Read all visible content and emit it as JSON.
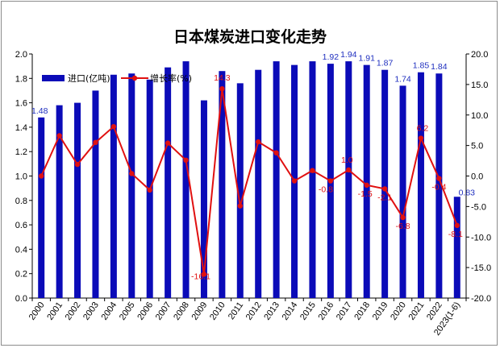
{
  "chart_data": {
    "type": "bar+line",
    "title": "日本煤炭进口变化走势",
    "categories": [
      "2000",
      "2001",
      "2002",
      "2003",
      "2004",
      "2005",
      "2006",
      "2007",
      "2008",
      "2009",
      "2010",
      "2011",
      "2012",
      "2013",
      "2014",
      "2015",
      "2016",
      "2017",
      "2018",
      "2019",
      "2020",
      "2021",
      "2022",
      "2023(1-6)"
    ],
    "series": [
      {
        "name": "进口(亿吨)",
        "type": "bar",
        "axis": "left",
        "color": "#0b0bb8",
        "values": [
          1.48,
          1.58,
          1.6,
          1.7,
          1.83,
          1.84,
          1.79,
          1.89,
          1.94,
          1.62,
          1.86,
          1.76,
          1.87,
          1.94,
          1.91,
          1.94,
          1.92,
          1.94,
          1.91,
          1.87,
          1.74,
          1.85,
          1.84,
          0.83
        ],
        "labels": [
          "1.48",
          "",
          "",
          "",
          "",
          "",
          "",
          "",
          "",
          "",
          "",
          "",
          "",
          "",
          "",
          "",
          "1.92",
          "1.94",
          "1.91",
          "1.87",
          "1.74",
          "1.85",
          "1.84",
          "0.83"
        ]
      },
      {
        "name": "增长率(%)",
        "type": "line",
        "axis": "right",
        "color": "#e01010",
        "values": [
          0.0,
          6.6,
          1.9,
          5.5,
          8.1,
          0.4,
          -2.3,
          5.4,
          2.6,
          -16.1,
          14.3,
          -4.9,
          5.6,
          3.8,
          -0.8,
          0.9,
          -0.8,
          1.0,
          -1.5,
          -2.1,
          -6.8,
          6.2,
          -0.4,
          -8.1
        ],
        "labels": [
          "",
          "",
          "",
          "",
          "",
          "",
          "",
          "",
          "",
          "-16.1",
          "14.3",
          "",
          "",
          "",
          "",
          "",
          "-0.8",
          "1.0",
          "-1.5",
          "-2.1",
          "-6.8",
          "6.2",
          "-0.4",
          "-8.1"
        ]
      }
    ],
    "y_left": {
      "min": 0,
      "max": 2.0,
      "step": 0.2,
      "ticks": [
        "0.0",
        "0.2",
        "0.4",
        "0.6",
        "0.8",
        "1.0",
        "1.2",
        "1.4",
        "1.6",
        "1.8",
        "2.0"
      ]
    },
    "y_right": {
      "min": -20,
      "max": 20,
      "step": 5,
      "ticks": [
        "-20.0",
        "-15.0",
        "-10.0",
        "-5.0",
        "0.0",
        "5.0",
        "10.0",
        "15.0",
        "20.0"
      ]
    },
    "grid": false,
    "legend_position": "top-left"
  }
}
